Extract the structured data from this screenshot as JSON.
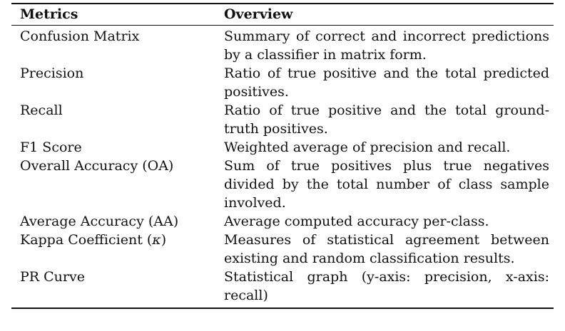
{
  "table": {
    "headers": {
      "metric": "Metrics",
      "overview": "Overview"
    },
    "rows": [
      {
        "metric": "Confusion Matrix",
        "overview": "Summary of correct and incorrect predictions by a classifier in matrix form."
      },
      {
        "metric": "Precision",
        "overview": "Ratio of true positive and the total predicted positives."
      },
      {
        "metric": "Recall",
        "overview": "Ratio of true positive and the total ground-truth positives."
      },
      {
        "metric": "F1 Score",
        "overview": "Weighted average of precision and recall."
      },
      {
        "metric": "Overall Accuracy (OA)",
        "overview": "Sum of true positives plus true negatives divided by the total number of class sample involved."
      },
      {
        "metric": "Average Accuracy (AA)",
        "overview": "Average computed accuracy per-class."
      },
      {
        "metric_prefix": "Kappa Coefficient (",
        "metric_symbol": "κ",
        "metric_suffix": ")",
        "overview": "Measures of statistical agreement between existing and random classification results."
      },
      {
        "metric": "PR Curve",
        "overview": "Statistical graph (y-axis: precision, x-axis: recall)"
      }
    ]
  }
}
